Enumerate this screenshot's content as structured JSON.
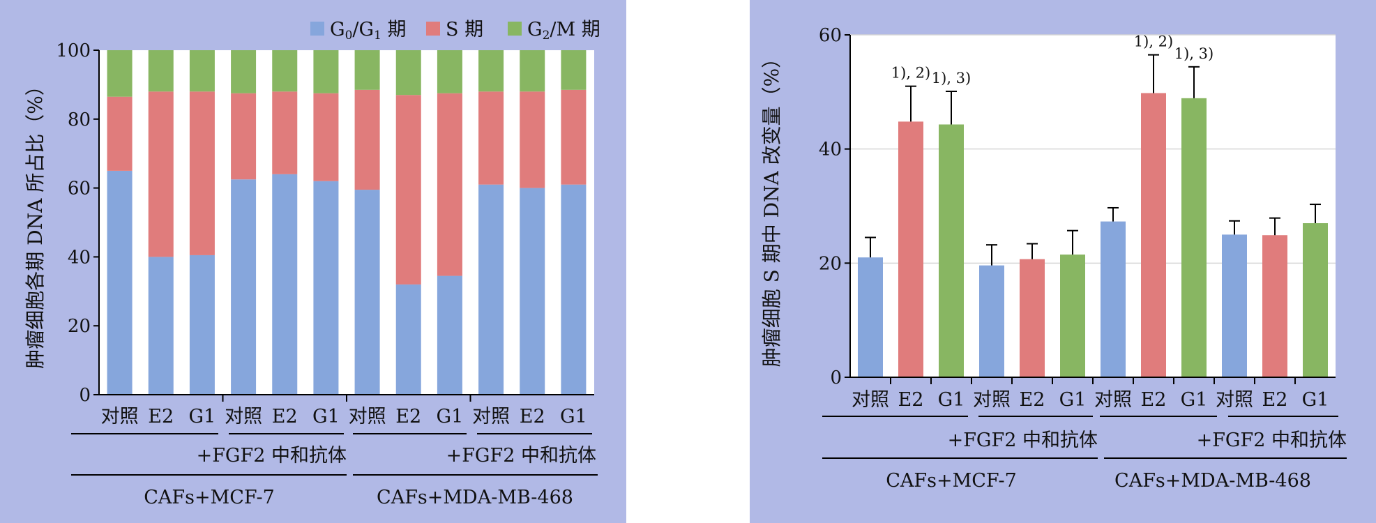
{
  "colors": {
    "panel_bg": "#b1b9e6",
    "g0g1": "#86a6dc",
    "s": "#e07c7c",
    "g2m": "#88b662",
    "plot_bg": "#ffffff"
  },
  "chart_data": [
    {
      "type": "bar",
      "stacked": true,
      "ylabel": "肿瘤细胞各期 DNA 所占比（%）",
      "ylim": [
        0,
        100
      ],
      "yticks": [
        0,
        20,
        40,
        60,
        80,
        100
      ],
      "grid": false,
      "legend_position": "top-right",
      "legend": [
        {
          "key": "g0g1",
          "label_main": "G",
          "sub1": "0",
          "mid": "/G",
          "sub2": "1",
          "suffix": " 期"
        },
        {
          "key": "s",
          "label_main": "S 期",
          "sub1": "",
          "mid": "",
          "sub2": "",
          "suffix": ""
        },
        {
          "key": "g2m",
          "label_main": "G",
          "sub1": "2",
          "mid": "/M",
          "sub2": "",
          "suffix": " 期"
        }
      ],
      "categories": [
        "对照",
        "E2",
        "G1",
        "对照",
        "E2",
        "G1",
        "对照",
        "E2",
        "G1",
        "对照",
        "E2",
        "G1"
      ],
      "series": [
        {
          "name": "G0/G1 期",
          "key": "g0g1",
          "values": [
            65,
            40,
            40.5,
            62.5,
            64,
            62,
            59.5,
            32,
            34.5,
            61,
            60,
            61
          ]
        },
        {
          "name": "S 期",
          "key": "s",
          "values": [
            21.5,
            48,
            47.5,
            25,
            24,
            25.5,
            29,
            55,
            53,
            27,
            28,
            27.5
          ]
        },
        {
          "name": "G2/M 期",
          "key": "g2m",
          "values": [
            13.5,
            12,
            12,
            12.5,
            12,
            12.5,
            11.5,
            13,
            12.5,
            12,
            12,
            11.5
          ]
        }
      ],
      "group_labels": [
        {
          "text": "+FGF2 中和抗体",
          "from": 3,
          "to": 5
        },
        {
          "text": "+FGF2 中和抗体",
          "from": 9,
          "to": 11
        }
      ],
      "cell_labels": [
        {
          "text": "CAFs+MCF-7",
          "from": 0,
          "to": 5
        },
        {
          "text": "CAFs+MDA-MB-468",
          "from": 6,
          "to": 11
        }
      ]
    },
    {
      "type": "bar",
      "ylabel": "肿瘤细胞 S 期中 DNA 改变量（%）",
      "ylim": [
        0,
        60
      ],
      "yticks": [
        0,
        20,
        40,
        60
      ],
      "grid": true,
      "categories": [
        "对照",
        "E2",
        "G1",
        "对照",
        "E2",
        "G1",
        "对照",
        "E2",
        "G1",
        "对照",
        "E2",
        "G1"
      ],
      "bar_colors": [
        "g0g1",
        "s",
        "g2m",
        "g0g1",
        "s",
        "g2m",
        "g0g1",
        "s",
        "g2m",
        "g0g1",
        "s",
        "g2m"
      ],
      "values": [
        21,
        44.8,
        44.3,
        19.6,
        20.7,
        21.5,
        27.3,
        49.8,
        48.9,
        25,
        24.9,
        27
      ],
      "errors": [
        3.5,
        6.2,
        5.8,
        3.6,
        2.7,
        4.2,
        2.4,
        6.7,
        5.5,
        2.4,
        3,
        3.3
      ],
      "annotations": [
        "",
        "1), 2)",
        "1), 3)",
        "",
        "",
        "",
        "",
        "1), 2)",
        "1), 3)",
        "",
        "",
        ""
      ],
      "group_labels": [
        {
          "text": "+FGF2 中和抗体",
          "from": 3,
          "to": 5
        },
        {
          "text": "+FGF2 中和抗体",
          "from": 9,
          "to": 11
        }
      ],
      "cell_labels": [
        {
          "text": "CAFs+MCF-7",
          "from": 0,
          "to": 5
        },
        {
          "text": "CAFs+MDA-MB-468",
          "from": 6,
          "to": 11
        }
      ]
    }
  ]
}
